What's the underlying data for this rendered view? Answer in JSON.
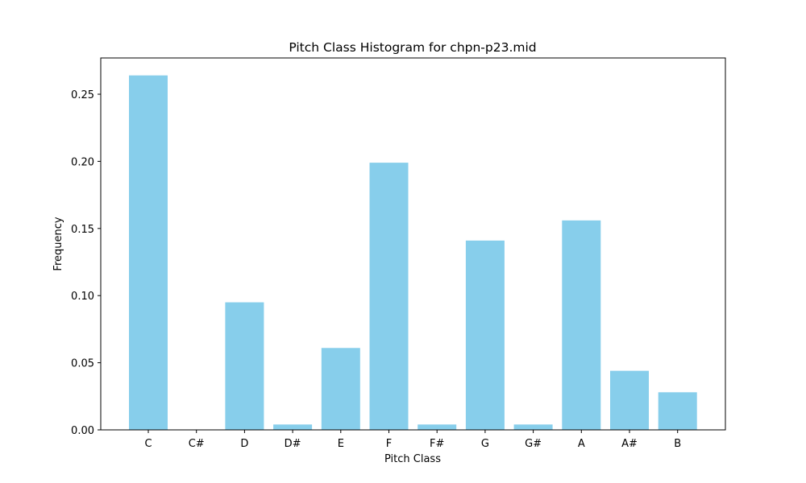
{
  "chart_data": {
    "type": "bar",
    "title": "Pitch Class Histogram for chpn-p23.mid",
    "xlabel": "Pitch Class",
    "ylabel": "Frequency",
    "categories": [
      "C",
      "C#",
      "D",
      "D#",
      "E",
      "F",
      "F#",
      "G",
      "G#",
      "A",
      "A#",
      "B"
    ],
    "values": [
      0.264,
      0.0,
      0.095,
      0.004,
      0.061,
      0.199,
      0.004,
      0.141,
      0.004,
      0.156,
      0.044,
      0.028
    ],
    "ylim": [
      0,
      0.277
    ],
    "yticks": [
      0.0,
      0.05,
      0.1,
      0.15,
      0.2,
      0.25
    ],
    "ytick_labels": [
      "0.00",
      "0.05",
      "0.10",
      "0.15",
      "0.20",
      "0.25"
    ],
    "bar_color": "#87ceeb",
    "grid": false,
    "legend": "none"
  }
}
